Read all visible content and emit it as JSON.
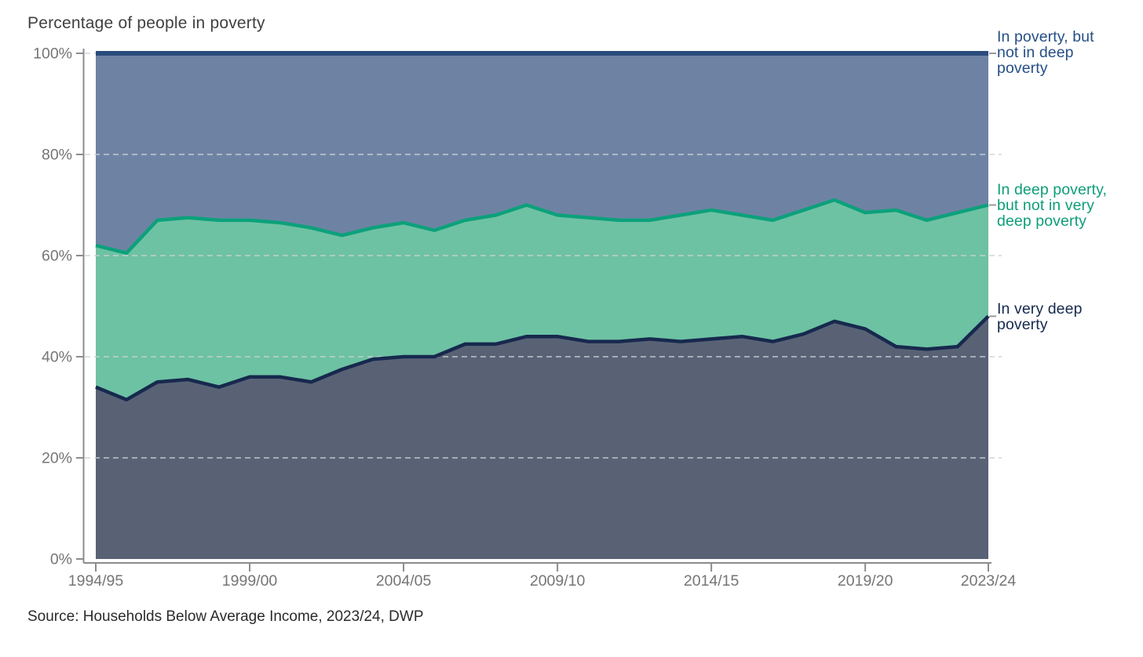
{
  "title": "Percentage of people in poverty",
  "source": "Source: Households Below Average Income, 2023/24, DWP",
  "legend": {
    "top": {
      "lines": [
        "In poverty, but",
        "not in deep",
        "poverty"
      ],
      "color": "#254f86"
    },
    "middle": {
      "lines": [
        "In deep poverty,",
        "but not in very",
        "deep poverty"
      ],
      "color": "#0d9e78"
    },
    "bottom": {
      "lines": [
        "In very deep",
        "poverty"
      ],
      "color": "#152a4e"
    }
  },
  "colors": {
    "background": "#ffffff",
    "title_text": "#414141",
    "axis_text": "#757575",
    "axis_line": "#8c8c8c",
    "gridline": "#cbd1d5",
    "source_text": "#2b2b2b",
    "legend_connector": "#999999"
  },
  "chart_data": {
    "type": "area",
    "stacked": true,
    "title": "Percentage of people in poverty",
    "xlabel": "",
    "ylabel": "",
    "ylim": [
      0,
      100
    ],
    "grid": "dashed horizontal at 20/40/60/80/100",
    "legend_position": "right, text labels beside final values",
    "x": [
      "1994/95",
      "1995/96",
      "1996/97",
      "1997/98",
      "1998/99",
      "1999/00",
      "2000/01",
      "2001/02",
      "2002/03",
      "2003/04",
      "2004/05",
      "2005/06",
      "2006/07",
      "2007/08",
      "2008/09",
      "2009/10",
      "2010/11",
      "2011/12",
      "2012/13",
      "2013/14",
      "2014/15",
      "2015/16",
      "2016/17",
      "2017/18",
      "2018/19",
      "2019/20",
      "2020/21",
      "2021/22",
      "2022/23",
      "2023/24"
    ],
    "x_tick_labels": [
      "1994/95",
      "1999/00",
      "2004/05",
      "2009/10",
      "2014/15",
      "2019/20",
      "2023/24"
    ],
    "y_ticks": [
      "0%",
      "20%",
      "40%",
      "60%",
      "80%",
      "100%"
    ],
    "series": [
      {
        "name": "In very deep poverty",
        "slug": "in-very-deep-poverty",
        "area_color": "#596275",
        "line_color": "#17294e",
        "line_width": 4.5,
        "cumulative_top": [
          34,
          31.5,
          35,
          35.5,
          34,
          36,
          36,
          35,
          37.5,
          39.5,
          40,
          40,
          42.5,
          42.5,
          44,
          44,
          43,
          43,
          43.5,
          43,
          43.5,
          44,
          43,
          44.5,
          47,
          45.5,
          42,
          41.5,
          42,
          48
        ]
      },
      {
        "name": "In deep poverty, but not in very deep poverty",
        "slug": "in-deep-poverty-not-very-deep",
        "area_color": "#6dc2a3",
        "line_color": "#0ca17b",
        "line_width": 4.5,
        "cumulative_top": [
          62,
          60.5,
          67,
          67.5,
          67,
          67,
          66.5,
          65.5,
          64,
          65.5,
          66.5,
          65,
          67,
          68,
          70,
          68,
          67.5,
          67,
          67,
          68,
          69,
          68,
          67,
          69,
          71,
          68.5,
          69,
          67,
          68.5,
          70
        ]
      },
      {
        "name": "In poverty, but not in deep poverty",
        "slug": "in-poverty-not-deep",
        "area_color": "#6e83a4",
        "line_color": "#2a4c7d",
        "line_width": 6,
        "cumulative_top": 100
      }
    ]
  }
}
